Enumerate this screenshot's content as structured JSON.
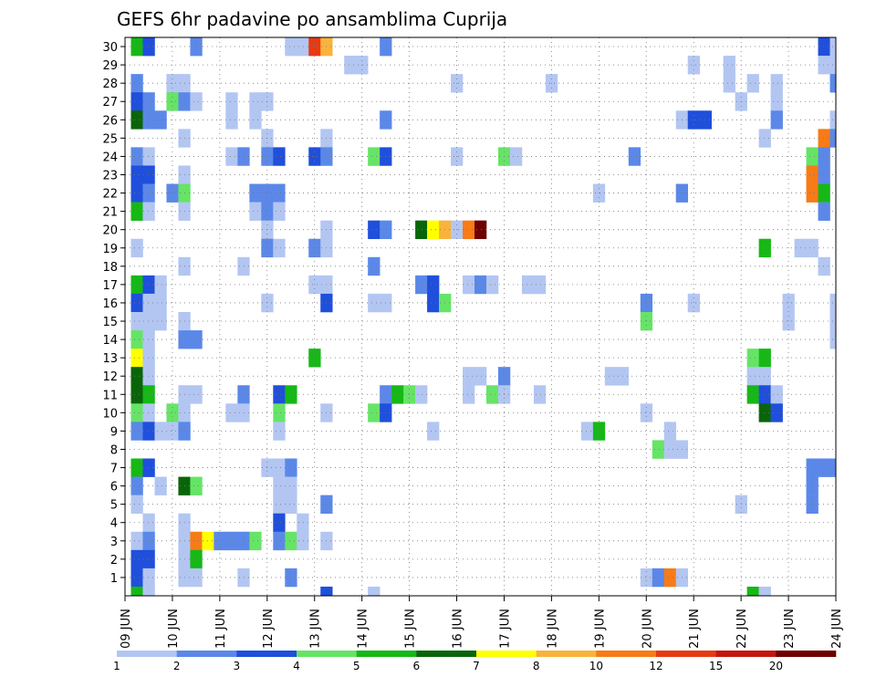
{
  "chart_data": {
    "type": "heatmap",
    "title": "GEFS 6hr padavine po ansamblima Cuprija",
    "xlabel": "",
    "ylabel": "",
    "x_tick_labels": [
      "09 JUN",
      "10 JUN",
      "11 JUN",
      "12 JUN",
      "13 JUN",
      "14 JUN",
      "15 JUN",
      "16 JUN",
      "17 JUN",
      "18 JUN",
      "19 JUN",
      "20 JUN",
      "21 JUN",
      "22 JUN",
      "23 JUN",
      "24 JUN"
    ],
    "y_tick_labels": [
      "1",
      "2",
      "3",
      "4",
      "5",
      "6",
      "7",
      "8",
      "9",
      "10",
      "11",
      "12",
      "13",
      "14",
      "15",
      "16",
      "17",
      "18",
      "19",
      "20",
      "21",
      "22",
      "23",
      "24",
      "25",
      "26",
      "27",
      "28",
      "29",
      "30"
    ],
    "x_range": [
      "09 JUN 00Z",
      "24 JUN 00Z"
    ],
    "time_step_hours": 6,
    "y_range": [
      0,
      30
    ],
    "grid": "dotted",
    "colorbar": {
      "position": "bottom",
      "levels": [
        "1",
        "2",
        "3",
        "4",
        "5",
        "6",
        "7",
        "8",
        "10",
        "12",
        "15",
        "20"
      ],
      "colors": [
        "#b3c6f2",
        "#5b88e8",
        "#1f4fdb",
        "#66e466",
        "#16b816",
        "#0a650a",
        "#ffff00",
        "#f9b33c",
        "#f77b16",
        "#e63a12",
        "#c31610",
        "#6d0000"
      ]
    },
    "cells": [
      [
        1,
        30,
        5
      ],
      [
        2,
        30,
        3
      ],
      [
        6,
        30,
        2
      ],
      [
        14,
        30,
        1
      ],
      [
        15,
        30,
        1
      ],
      [
        16,
        30,
        10
      ],
      [
        17,
        30,
        8
      ],
      [
        22,
        30,
        2
      ],
      [
        59,
        30,
        3
      ],
      [
        60,
        30,
        1
      ],
      [
        19,
        29,
        1
      ],
      [
        20,
        29,
        1
      ],
      [
        48,
        29,
        1
      ],
      [
        51,
        29,
        1
      ],
      [
        59,
        29,
        1
      ],
      [
        60,
        29,
        1
      ],
      [
        62,
        29,
        3
      ],
      [
        63,
        29,
        3
      ],
      [
        64,
        29,
        5
      ],
      [
        1,
        28,
        2
      ],
      [
        4,
        28,
        1
      ],
      [
        5,
        28,
        1
      ],
      [
        28,
        28,
        1
      ],
      [
        36,
        28,
        1
      ],
      [
        55,
        28,
        1
      ],
      [
        60,
        28,
        2
      ],
      [
        51,
        28,
        1
      ],
      [
        53,
        28,
        1
      ],
      [
        1,
        27,
        3
      ],
      [
        2,
        27,
        2
      ],
      [
        4,
        27,
        4
      ],
      [
        5,
        27,
        2
      ],
      [
        6,
        27,
        1
      ],
      [
        9,
        27,
        1
      ],
      [
        11,
        27,
        1
      ],
      [
        12,
        27,
        1
      ],
      [
        52,
        27,
        1
      ],
      [
        55,
        27,
        1
      ],
      [
        62,
        27,
        1
      ],
      [
        1,
        26,
        6
      ],
      [
        2,
        26,
        2
      ],
      [
        3,
        26,
        2
      ],
      [
        9,
        26,
        1
      ],
      [
        11,
        26,
        1
      ],
      [
        22,
        26,
        2
      ],
      [
        47,
        26,
        1
      ],
      [
        48,
        26,
        3
      ],
      [
        49,
        26,
        3
      ],
      [
        55,
        26,
        2
      ],
      [
        60,
        26,
        1
      ],
      [
        61,
        26,
        2
      ],
      [
        62,
        26,
        3
      ],
      [
        63,
        26,
        7
      ],
      [
        64,
        26,
        3
      ],
      [
        65,
        26,
        4
      ],
      [
        66,
        26,
        4
      ],
      [
        67,
        26,
        1
      ],
      [
        5,
        25,
        1
      ],
      [
        12,
        25,
        1
      ],
      [
        17,
        25,
        1
      ],
      [
        54,
        25,
        1
      ],
      [
        59,
        25,
        9
      ],
      [
        60,
        25,
        2
      ],
      [
        61,
        25,
        7
      ],
      [
        1,
        24,
        2
      ],
      [
        2,
        24,
        1
      ],
      [
        9,
        24,
        1
      ],
      [
        10,
        24,
        2
      ],
      [
        12,
        24,
        2
      ],
      [
        13,
        24,
        3
      ],
      [
        16,
        24,
        3
      ],
      [
        17,
        24,
        2
      ],
      [
        21,
        24,
        4
      ],
      [
        22,
        24,
        3
      ],
      [
        28,
        24,
        1
      ],
      [
        32,
        24,
        4
      ],
      [
        33,
        24,
        1
      ],
      [
        43,
        24,
        2
      ],
      [
        58,
        24,
        4
      ],
      [
        59,
        24,
        2
      ],
      [
        1,
        23,
        3
      ],
      [
        2,
        23,
        3
      ],
      [
        5,
        23,
        1
      ],
      [
        58,
        23,
        9
      ],
      [
        59,
        23,
        2
      ],
      [
        66,
        23,
        12
      ],
      [
        67,
        23,
        1
      ],
      [
        1,
        22,
        3
      ],
      [
        2,
        22,
        2
      ],
      [
        4,
        22,
        2
      ],
      [
        5,
        22,
        4
      ],
      [
        11,
        22,
        2
      ],
      [
        12,
        22,
        2
      ],
      [
        13,
        22,
        2
      ],
      [
        40,
        22,
        1
      ],
      [
        47,
        22,
        2
      ],
      [
        58,
        22,
        9
      ],
      [
        59,
        22,
        5
      ],
      [
        1,
        21,
        5
      ],
      [
        2,
        21,
        1
      ],
      [
        5,
        21,
        1
      ],
      [
        11,
        21,
        1
      ],
      [
        12,
        21,
        2
      ],
      [
        13,
        21,
        1
      ],
      [
        59,
        21,
        2
      ],
      [
        61,
        21,
        6
      ],
      [
        62,
        21,
        2
      ],
      [
        12,
        20,
        1
      ],
      [
        17,
        20,
        1
      ],
      [
        21,
        20,
        3
      ],
      [
        22,
        20,
        2
      ],
      [
        25,
        20,
        6
      ],
      [
        26,
        20,
        7
      ],
      [
        27,
        20,
        8
      ],
      [
        28,
        20,
        1
      ],
      [
        29,
        20,
        9
      ],
      [
        30,
        20,
        12
      ],
      [
        1,
        19,
        1
      ],
      [
        12,
        19,
        2
      ],
      [
        13,
        19,
        1
      ],
      [
        16,
        19,
        2
      ],
      [
        17,
        19,
        1
      ],
      [
        54,
        19,
        5
      ],
      [
        57,
        19,
        1
      ],
      [
        58,
        19,
        1
      ],
      [
        5,
        18,
        1
      ],
      [
        10,
        18,
        1
      ],
      [
        21,
        18,
        2
      ],
      [
        59,
        18,
        1
      ],
      [
        62,
        18,
        2
      ],
      [
        63,
        18,
        3
      ],
      [
        64,
        18,
        2
      ],
      [
        65,
        18,
        5
      ],
      [
        66,
        18,
        7
      ],
      [
        1,
        17,
        5
      ],
      [
        2,
        17,
        3
      ],
      [
        3,
        17,
        1
      ],
      [
        16,
        17,
        1
      ],
      [
        17,
        17,
        1
      ],
      [
        25,
        17,
        2
      ],
      [
        26,
        17,
        3
      ],
      [
        29,
        17,
        1
      ],
      [
        30,
        17,
        2
      ],
      [
        31,
        17,
        1
      ],
      [
        34,
        17,
        1
      ],
      [
        35,
        17,
        1
      ],
      [
        64,
        17,
        3
      ],
      [
        65,
        17,
        9
      ],
      [
        66,
        17,
        1
      ],
      [
        1,
        16,
        3
      ],
      [
        2,
        16,
        1
      ],
      [
        3,
        16,
        1
      ],
      [
        12,
        16,
        1
      ],
      [
        17,
        16,
        3
      ],
      [
        21,
        16,
        1
      ],
      [
        22,
        16,
        1
      ],
      [
        26,
        16,
        3
      ],
      [
        27,
        16,
        4
      ],
      [
        44,
        16,
        2
      ],
      [
        48,
        16,
        1
      ],
      [
        56,
        16,
        1
      ],
      [
        60,
        16,
        1
      ],
      [
        61,
        16,
        2
      ],
      [
        1,
        15,
        1
      ],
      [
        2,
        15,
        1
      ],
      [
        3,
        15,
        1
      ],
      [
        5,
        15,
        1
      ],
      [
        44,
        15,
        4
      ],
      [
        56,
        15,
        1
      ],
      [
        60,
        15,
        1
      ],
      [
        62,
        15,
        1
      ],
      [
        1,
        14,
        4
      ],
      [
        2,
        14,
        1
      ],
      [
        5,
        14,
        2
      ],
      [
        6,
        14,
        2
      ],
      [
        60,
        14,
        1
      ],
      [
        1,
        13,
        7
      ],
      [
        2,
        13,
        1
      ],
      [
        16,
        13,
        5
      ],
      [
        53,
        13,
        4
      ],
      [
        54,
        13,
        5
      ],
      [
        1,
        12,
        6
      ],
      [
        2,
        12,
        1
      ],
      [
        29,
        12,
        1
      ],
      [
        30,
        12,
        1
      ],
      [
        32,
        12,
        2
      ],
      [
        41,
        12,
        1
      ],
      [
        42,
        12,
        1
      ],
      [
        53,
        12,
        1
      ],
      [
        54,
        12,
        1
      ],
      [
        1,
        11,
        6
      ],
      [
        2,
        11,
        5
      ],
      [
        5,
        11,
        1
      ],
      [
        6,
        11,
        1
      ],
      [
        10,
        11,
        2
      ],
      [
        13,
        11,
        3
      ],
      [
        14,
        11,
        5
      ],
      [
        22,
        11,
        2
      ],
      [
        23,
        11,
        5
      ],
      [
        24,
        11,
        4
      ],
      [
        25,
        11,
        1
      ],
      [
        29,
        11,
        1
      ],
      [
        31,
        11,
        4
      ],
      [
        32,
        11,
        1
      ],
      [
        35,
        11,
        1
      ],
      [
        53,
        11,
        5
      ],
      [
        54,
        11,
        3
      ],
      [
        55,
        11,
        1
      ],
      [
        65,
        11,
        5
      ],
      [
        1,
        10,
        4
      ],
      [
        2,
        10,
        1
      ],
      [
        4,
        10,
        4
      ],
      [
        5,
        10,
        1
      ],
      [
        9,
        10,
        1
      ],
      [
        10,
        10,
        1
      ],
      [
        13,
        10,
        4
      ],
      [
        17,
        10,
        1
      ],
      [
        21,
        10,
        4
      ],
      [
        22,
        10,
        3
      ],
      [
        44,
        10,
        1
      ],
      [
        54,
        10,
        6
      ],
      [
        55,
        10,
        3
      ],
      [
        61,
        10,
        1
      ],
      [
        1,
        9,
        2
      ],
      [
        2,
        9,
        3
      ],
      [
        3,
        9,
        1
      ],
      [
        4,
        9,
        1
      ],
      [
        5,
        9,
        2
      ],
      [
        13,
        9,
        1
      ],
      [
        26,
        9,
        1
      ],
      [
        39,
        9,
        1
      ],
      [
        40,
        9,
        5
      ],
      [
        46,
        9,
        1
      ],
      [
        45,
        8,
        4
      ],
      [
        46,
        8,
        1
      ],
      [
        47,
        8,
        1
      ],
      [
        1,
        7,
        5
      ],
      [
        2,
        7,
        3
      ],
      [
        12,
        7,
        1
      ],
      [
        13,
        7,
        1
      ],
      [
        14,
        7,
        2
      ],
      [
        58,
        7,
        2
      ],
      [
        59,
        7,
        2
      ],
      [
        60,
        7,
        2
      ],
      [
        1,
        6,
        2
      ],
      [
        3,
        6,
        1
      ],
      [
        5,
        6,
        6
      ],
      [
        6,
        6,
        4
      ],
      [
        13,
        6,
        1
      ],
      [
        14,
        6,
        1
      ],
      [
        58,
        6,
        2
      ],
      [
        1,
        5,
        1
      ],
      [
        13,
        5,
        1
      ],
      [
        14,
        5,
        1
      ],
      [
        17,
        5,
        2
      ],
      [
        52,
        5,
        1
      ],
      [
        58,
        5,
        2
      ],
      [
        61,
        5,
        1
      ],
      [
        62,
        5,
        2
      ],
      [
        67,
        5,
        3
      ],
      [
        2,
        4,
        1
      ],
      [
        5,
        4,
        1
      ],
      [
        13,
        4,
        3
      ],
      [
        15,
        4,
        1
      ],
      [
        1,
        3,
        1
      ],
      [
        2,
        3,
        2
      ],
      [
        5,
        3,
        1
      ],
      [
        6,
        3,
        9
      ],
      [
        7,
        3,
        7
      ],
      [
        8,
        3,
        2
      ],
      [
        9,
        3,
        2
      ],
      [
        10,
        3,
        2
      ],
      [
        11,
        3,
        4
      ],
      [
        13,
        3,
        2
      ],
      [
        14,
        3,
        4
      ],
      [
        15,
        3,
        1
      ],
      [
        17,
        3,
        1
      ],
      [
        1,
        2,
        3
      ],
      [
        2,
        2,
        3
      ],
      [
        5,
        2,
        1
      ],
      [
        6,
        2,
        5
      ],
      [
        1,
        1,
        3
      ],
      [
        2,
        1,
        1
      ],
      [
        5,
        1,
        1
      ],
      [
        6,
        1,
        1
      ],
      [
        10,
        1,
        1
      ],
      [
        14,
        1,
        2
      ],
      [
        44,
        1,
        1
      ],
      [
        45,
        1,
        2
      ],
      [
        46,
        1,
        9
      ],
      [
        47,
        1,
        1
      ],
      [
        1,
        0,
        5
      ],
      [
        2,
        0,
        1
      ],
      [
        17,
        0,
        3
      ],
      [
        21,
        0,
        1
      ],
      [
        53,
        0,
        5
      ],
      [
        54,
        0,
        1
      ]
    ]
  }
}
